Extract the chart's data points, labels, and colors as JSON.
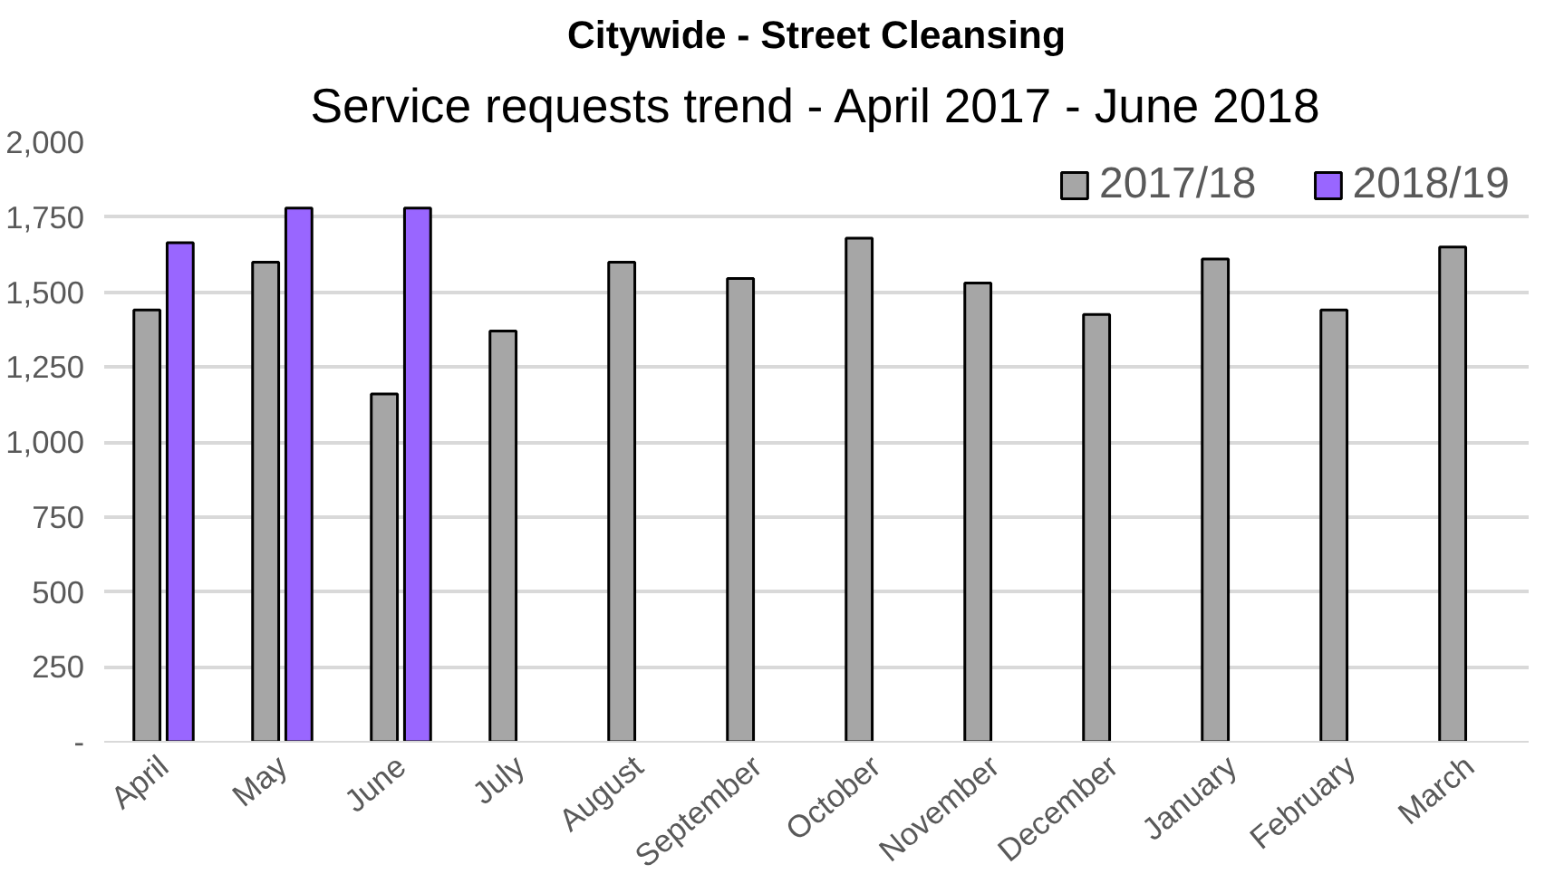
{
  "chart_data": {
    "type": "bar",
    "title": "Citywide - Street Cleansing",
    "subtitle": "Service requests trend - April 2017 - June 2018",
    "categories": [
      "April",
      "May",
      "June",
      "July",
      "August",
      "September",
      "October",
      "November",
      "December",
      "January",
      "February",
      "March"
    ],
    "series": [
      {
        "name": "2017/18",
        "color": "#a6a6a6",
        "values": [
          1440,
          1600,
          1160,
          1370,
          1600,
          1545,
          1680,
          1530,
          1425,
          1610,
          1440,
          1650
        ]
      },
      {
        "name": "2018/19",
        "color": "#9966ff",
        "values": [
          1665,
          1780,
          1780,
          null,
          null,
          null,
          null,
          null,
          null,
          null,
          null,
          null
        ]
      }
    ],
    "ylim": [
      0,
      2000
    ],
    "yticks": [
      {
        "value": 0,
        "label": "-"
      },
      {
        "value": 250,
        "label": "250"
      },
      {
        "value": 500,
        "label": "500"
      },
      {
        "value": 750,
        "label": "750"
      },
      {
        "value": 1000,
        "label": "1,000"
      },
      {
        "value": 1250,
        "label": "1,250"
      },
      {
        "value": 1500,
        "label": "1,500"
      },
      {
        "value": 1750,
        "label": "1,750"
      },
      {
        "value": 2000,
        "label": "2,000"
      }
    ],
    "grid": "y",
    "legend": "top right"
  }
}
